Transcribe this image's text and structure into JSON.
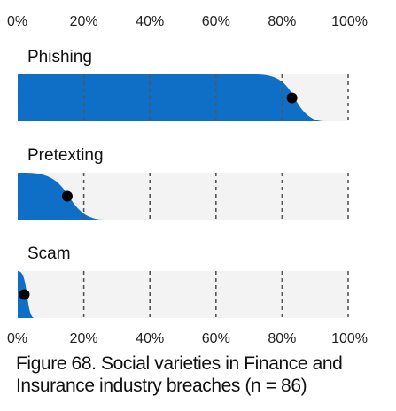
{
  "caption": "Figure 68. Social varieties in Finance and Insurance industry breaches (n = 86)",
  "colors": {
    "fill": "#0f6fc6",
    "track": "#f3f3f3",
    "grid": "#555555",
    "dot": "#000000"
  },
  "chart_data": {
    "type": "area",
    "title": "Figure 68. Social varieties in Finance and Insurance industry breaches (n = 86)",
    "xlabel": "",
    "ylabel": "",
    "xlim": [
      0,
      1
    ],
    "ticks": [
      "0%",
      "20%",
      "40%",
      "60%",
      "80%",
      "100%"
    ],
    "tick_values": [
      0,
      0.2,
      0.4,
      0.6,
      0.8,
      1.0
    ],
    "grid": true,
    "series": [
      {
        "name": "Phishing",
        "value": 0.83,
        "low": 0.72,
        "high": 0.93
      },
      {
        "name": "Pretexting",
        "value": 0.15,
        "low": 0.02,
        "high": 0.26
      },
      {
        "name": "Scam",
        "value": 0.02,
        "low": 0.0,
        "high": 0.05
      }
    ]
  }
}
